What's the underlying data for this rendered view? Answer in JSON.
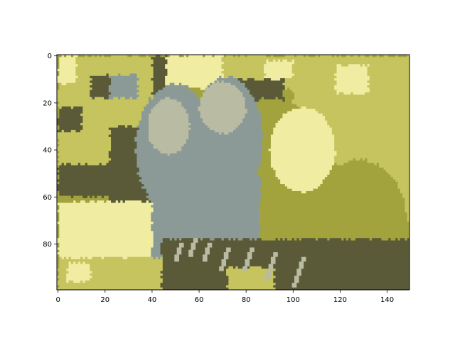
{
  "chart_data": {
    "type": "heatmap",
    "title": "",
    "xlabel": "",
    "ylabel": "",
    "width": 150,
    "height": 100,
    "xlim": [
      -0.5,
      149.5
    ],
    "ylim": [
      99.5,
      -0.5
    ],
    "x_ticks": [
      0,
      20,
      40,
      60,
      80,
      100,
      120,
      140
    ],
    "x_tick_labels": [
      "0",
      "20",
      "40",
      "60",
      "80",
      "100",
      "120",
      "140"
    ],
    "y_ticks": [
      0,
      20,
      40,
      60,
      80
    ],
    "y_tick_labels": [
      "0",
      "20",
      "40",
      "60",
      "80"
    ],
    "grid": false,
    "legend": "none",
    "palette": {
      "dark": "#5a5a38",
      "olive": "#a3a33e",
      "yellow": "#c5c45e",
      "light": "#f0eca2",
      "gray": "#8b9a96",
      "silver": "#b9bba3"
    },
    "background": "olive",
    "regions": [
      {
        "color": "yellow",
        "shape": "rect",
        "x0": 0,
        "y0": 0,
        "x1": 50,
        "y1": 30
      },
      {
        "color": "light",
        "shape": "rect",
        "x0": 0,
        "y0": 0,
        "x1": 8,
        "y1": 12
      },
      {
        "color": "dark",
        "shape": "rect",
        "x0": 14,
        "y0": 8,
        "x1": 24,
        "y1": 18
      },
      {
        "color": "gray",
        "shape": "rect",
        "x0": 22,
        "y0": 8,
        "x1": 34,
        "y1": 18
      },
      {
        "color": "dark",
        "shape": "rect",
        "x0": 40,
        "y0": 0,
        "x1": 50,
        "y1": 18
      },
      {
        "color": "light",
        "shape": "rect",
        "x0": 46,
        "y0": 0,
        "x1": 70,
        "y1": 14
      },
      {
        "color": "yellow",
        "shape": "rect",
        "x0": 70,
        "y0": 0,
        "x1": 100,
        "y1": 14
      },
      {
        "color": "light",
        "shape": "rect",
        "x0": 88,
        "y0": 2,
        "x1": 106,
        "y1": 10
      },
      {
        "color": "dark",
        "shape": "rect",
        "x0": 76,
        "y0": 10,
        "x1": 96,
        "y1": 20
      },
      {
        "color": "yellow",
        "shape": "rect",
        "x0": 100,
        "y0": 0,
        "x1": 150,
        "y1": 70
      },
      {
        "color": "light",
        "shape": "rect",
        "x0": 118,
        "y0": 4,
        "x1": 132,
        "y1": 16
      },
      {
        "color": "olive",
        "shape": "ellipse",
        "cx": 90,
        "cy": 60,
        "rx": 30,
        "ry": 42
      },
      {
        "color": "light",
        "shape": "ellipse",
        "cx": 104,
        "cy": 40,
        "rx": 14,
        "ry": 18
      },
      {
        "color": "olive",
        "shape": "ellipse",
        "cx": 128,
        "cy": 70,
        "rx": 20,
        "ry": 26
      },
      {
        "color": "yellow",
        "shape": "rect",
        "x0": 0,
        "y0": 28,
        "x1": 34,
        "y1": 50
      },
      {
        "color": "dark",
        "shape": "rect",
        "x0": 0,
        "y0": 22,
        "x1": 10,
        "y1": 32
      },
      {
        "color": "dark",
        "shape": "rect",
        "x0": 0,
        "y0": 46,
        "x1": 36,
        "y1": 60
      },
      {
        "color": "dark",
        "shape": "rect",
        "x0": 22,
        "y0": 30,
        "x1": 40,
        "y1": 62
      },
      {
        "color": "light",
        "shape": "rect",
        "x0": 0,
        "y0": 62,
        "x1": 72,
        "y1": 100
      },
      {
        "color": "yellow",
        "shape": "rect",
        "x0": 0,
        "y0": 86,
        "x1": 60,
        "y1": 100
      },
      {
        "color": "light",
        "shape": "rect",
        "x0": 4,
        "y0": 88,
        "x1": 14,
        "y1": 96
      },
      {
        "color": "gray",
        "shape": "ellipse",
        "cx": 50,
        "cy": 40,
        "rx": 17,
        "ry": 28
      },
      {
        "color": "silver",
        "shape": "ellipse",
        "cx": 47,
        "cy": 30,
        "rx": 9,
        "ry": 12
      },
      {
        "color": "gray",
        "shape": "rect",
        "x0": 40,
        "y0": 50,
        "x1": 62,
        "y1": 86
      },
      {
        "color": "gray",
        "shape": "ellipse",
        "cx": 72,
        "cy": 35,
        "rx": 15,
        "ry": 26
      },
      {
        "color": "silver",
        "shape": "ellipse",
        "cx": 70,
        "cy": 22,
        "rx": 10,
        "ry": 11
      },
      {
        "color": "gray",
        "shape": "rect",
        "x0": 62,
        "y0": 50,
        "x1": 86,
        "y1": 88
      },
      {
        "color": "dark",
        "shape": "rect",
        "x0": 44,
        "y0": 78,
        "x1": 150,
        "y1": 100
      },
      {
        "color": "dark",
        "shape": "rect",
        "x0": 92,
        "y0": 84,
        "x1": 150,
        "y1": 100
      },
      {
        "color": "yellow",
        "shape": "rect",
        "x0": 72,
        "y0": 90,
        "x1": 92,
        "y1": 100
      }
    ],
    "stripes": [
      {
        "color": "silver",
        "x": 52,
        "y0": 80,
        "y1": 88
      },
      {
        "color": "silver",
        "x": 58,
        "y0": 78,
        "y1": 86
      },
      {
        "color": "silver",
        "x": 64,
        "y0": 80,
        "y1": 88
      },
      {
        "color": "silver",
        "x": 72,
        "y0": 82,
        "y1": 92
      },
      {
        "color": "silver",
        "x": 82,
        "y0": 82,
        "y1": 92
      },
      {
        "color": "silver",
        "x": 92,
        "y0": 84,
        "y1": 96
      },
      {
        "color": "silver",
        "x": 104,
        "y0": 86,
        "y1": 99
      }
    ]
  }
}
